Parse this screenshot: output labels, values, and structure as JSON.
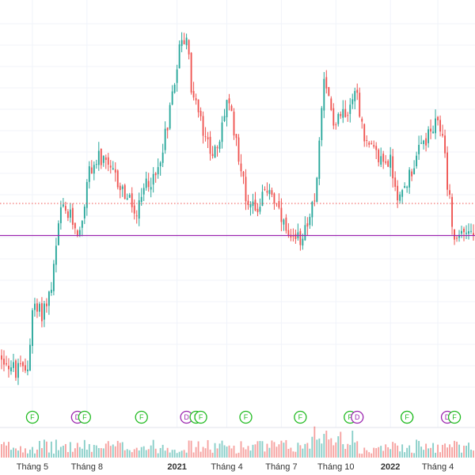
{
  "chart_data": {
    "type": "candlestick",
    "x_axis": {
      "ticks": [
        {
          "label": "Tháng 5",
          "bold": false
        },
        {
          "label": "Tháng 8",
          "bold": false
        },
        {
          "label": "2021",
          "bold": true
        },
        {
          "label": "Tháng 4",
          "bold": false
        },
        {
          "label": "Tháng 7",
          "bold": false
        },
        {
          "label": "Tháng 10",
          "bold": false
        },
        {
          "label": "2022",
          "bold": true
        },
        {
          "label": "Tháng 4",
          "bold": false
        }
      ]
    },
    "y_axis": {
      "range": [
        0,
        100
      ],
      "labels_visible": false
    },
    "grid": true,
    "reference_lines": [
      {
        "style": "solid",
        "color": "#9c27b0",
        "value": 42.5
      },
      {
        "style": "dotted",
        "color": "#ef5350",
        "value": 50.6
      }
    ],
    "price_path": {
      "index_range": [
        0,
        199
      ],
      "anchors": [
        [
          0,
          12
        ],
        [
          6,
          8
        ],
        [
          11,
          9
        ],
        [
          13,
          24
        ],
        [
          17,
          23
        ],
        [
          21,
          29
        ],
        [
          25,
          49
        ],
        [
          29,
          47
        ],
        [
          33,
          43
        ],
        [
          37,
          59
        ],
        [
          41,
          62
        ],
        [
          48,
          57
        ],
        [
          54,
          51
        ],
        [
          57,
          47
        ],
        [
          61,
          56
        ],
        [
          65,
          57
        ],
        [
          70,
          71
        ],
        [
          75,
          90
        ],
        [
          78,
          93
        ],
        [
          80,
          80
        ],
        [
          82,
          76
        ],
        [
          86,
          66
        ],
        [
          91,
          63
        ],
        [
          95,
          77
        ],
        [
          99,
          67
        ],
        [
          103,
          52
        ],
        [
          108,
          50
        ],
        [
          113,
          55
        ],
        [
          118,
          46
        ],
        [
          122,
          40
        ],
        [
          126,
          42
        ],
        [
          132,
          51
        ],
        [
          136,
          80
        ],
        [
          140,
          72
        ],
        [
          146,
          75
        ],
        [
          149,
          81
        ],
        [
          154,
          65
        ],
        [
          159,
          62
        ],
        [
          164,
          61
        ],
        [
          168,
          51
        ],
        [
          172,
          58
        ],
        [
          178,
          66
        ],
        [
          183,
          70
        ],
        [
          186,
          69
        ],
        [
          188,
          56
        ],
        [
          191,
          41
        ],
        [
          195,
          44
        ],
        [
          199,
          43
        ]
      ],
      "volatility": 2.2
    },
    "volume": {
      "color_up": "#26a69a",
      "color_down": "#ef5350"
    },
    "colors": {
      "up": "#26a69a",
      "down": "#ef5350"
    },
    "events": [
      {
        "symbol": "F",
        "color": "#22bb22"
      },
      {
        "symbol": "D",
        "color": "#9c27b0"
      },
      {
        "symbol": "F",
        "color": "#22bb22"
      },
      {
        "symbol": "F",
        "color": "#22bb22"
      },
      {
        "symbol": "D",
        "color": "#9c27b0"
      },
      {
        "symbol": "F",
        "color": "#22bb22"
      },
      {
        "symbol": "F",
        "color": "#22bb22"
      },
      {
        "symbol": "F",
        "color": "#22bb22"
      },
      {
        "symbol": "F",
        "color": "#22bb22"
      },
      {
        "symbol": "F",
        "color": "#22bb22"
      },
      {
        "symbol": "D",
        "color": "#9c27b0"
      },
      {
        "symbol": "F",
        "color": "#22bb22"
      },
      {
        "symbol": "F",
        "color": "#22bb22"
      },
      {
        "symbol": "D",
        "color": "#9c27b0"
      },
      {
        "symbol": "F",
        "color": "#22bb22"
      }
    ]
  }
}
